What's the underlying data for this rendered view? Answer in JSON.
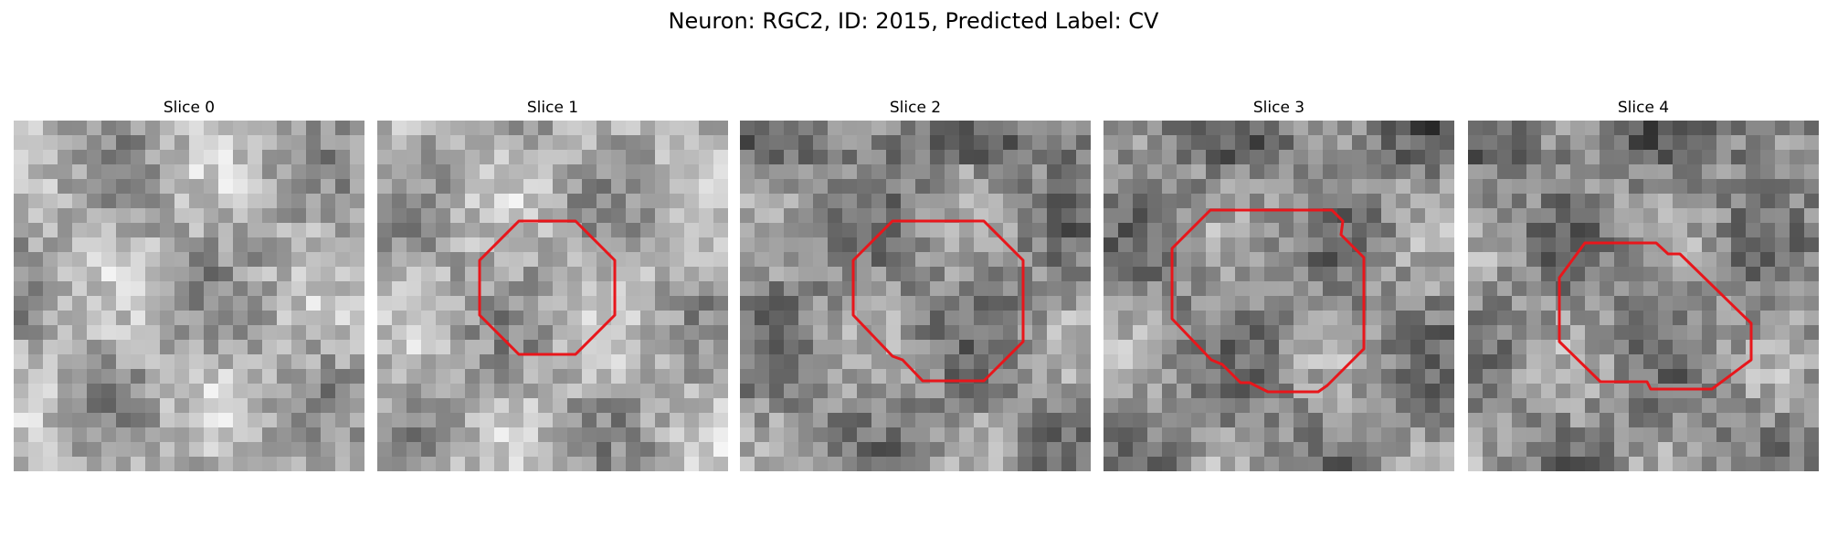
{
  "figure": {
    "title": "Neuron: RGC2, ID: 2015, Predicted Label: CV",
    "outline_color": "#e8161b",
    "colormap": "gray"
  },
  "slices": [
    {
      "label": "Slice 0",
      "has_outline": false,
      "tone": "bright",
      "seed": 11
    },
    {
      "label": "Slice 1",
      "has_outline": true,
      "tone": "bright",
      "seed": 23
    },
    {
      "label": "Slice 2",
      "has_outline": true,
      "tone": "mid",
      "seed": 37
    },
    {
      "label": "Slice 3",
      "has_outline": true,
      "tone": "mid",
      "seed": 51
    },
    {
      "label": "Slice 4",
      "has_outline": true,
      "tone": "mid",
      "seed": 67
    }
  ]
}
